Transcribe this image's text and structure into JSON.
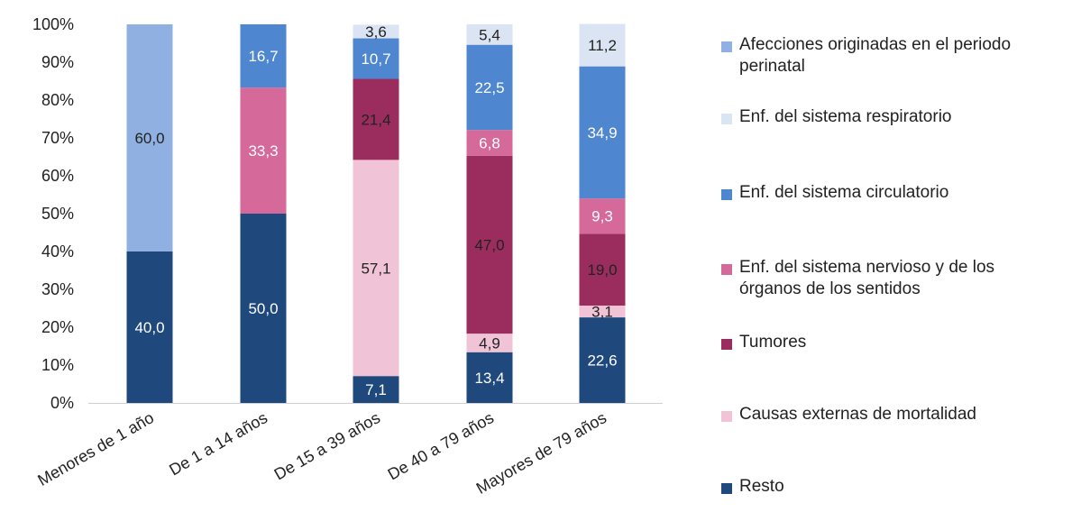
{
  "chart_data": {
    "type": "bar",
    "stacked": true,
    "categories": [
      "Menores de 1 año",
      "De 1 a 14 años",
      "De 15 a 39 años",
      "De 40 a 79 años",
      "Mayores de 79 años"
    ],
    "series": [
      {
        "name": "Resto",
        "color": "#1f497d",
        "values": [
          40.0,
          50.0,
          7.1,
          13.4,
          22.6
        ]
      },
      {
        "name": "Causas externas de mortalidad",
        "color": "#f0c4d6",
        "values": [
          0,
          0,
          57.1,
          4.9,
          3.1
        ]
      },
      {
        "name": "Tumores",
        "color": "#9b2d5e",
        "values": [
          0,
          0,
          21.4,
          47.0,
          19.0
        ]
      },
      {
        "name": "Enf. del sistema nervioso y de los órganos de los sentidos",
        "color": "#d4699a",
        "values": [
          0,
          33.3,
          0,
          6.8,
          9.3
        ]
      },
      {
        "name": "Enf. del sistema circulatorio",
        "color": "#4f86d0",
        "values": [
          0,
          16.7,
          10.7,
          22.5,
          34.9
        ]
      },
      {
        "name": "Enf. del sistema respiratorio",
        "color": "#dbe4f2",
        "values": [
          0,
          0,
          3.6,
          5.4,
          11.2
        ]
      },
      {
        "name": "Afecciones originadas en el periodo perinatal",
        "color": "#8fb0e0",
        "values": [
          60.0,
          0,
          0,
          0,
          0
        ]
      }
    ],
    "labels": [
      [
        "40,0",
        "",
        "",
        "",
        "",
        "",
        "60,0"
      ],
      [
        "50,0",
        "",
        "",
        "33,3",
        "16,7",
        "",
        ""
      ],
      [
        "7,1",
        "57,1",
        "21,4",
        "",
        "10,7",
        "3,6",
        ""
      ],
      [
        "13,4",
        "4,9",
        "47,0",
        "6,8",
        "22,5",
        "5,4",
        ""
      ],
      [
        "22,6",
        "3,1",
        "19,0",
        "9,3",
        "34,9",
        "11,2",
        ""
      ]
    ],
    "label_colors": [
      "#ffffff",
      "#222222",
      "#222222",
      "#ffffff",
      "#ffffff",
      "#222222",
      "#222222"
    ],
    "yticks": [
      "0%",
      "10%",
      "20%",
      "30%",
      "40%",
      "50%",
      "60%",
      "70%",
      "80%",
      "90%",
      "100%"
    ],
    "ylim": [
      0,
      100
    ],
    "grid": false,
    "legend_position": "right"
  },
  "legend": [
    {
      "label": "Afecciones originadas en el periodo perinatal",
      "color": "#8fb0e0"
    },
    {
      "label": "Enf. del sistema respiratorio",
      "color": "#dbe4f2"
    },
    {
      "label": "Enf. del sistema circulatorio",
      "color": "#4f86d0"
    },
    {
      "label": "Enf. del sistema nervioso y de los órganos de los sentidos",
      "color": "#d4699a"
    },
    {
      "label": "Tumores",
      "color": "#9b2d5e"
    },
    {
      "label": "Causas externas de mortalidad",
      "color": "#f0c4d6"
    },
    {
      "label": "Resto",
      "color": "#1f497d"
    }
  ]
}
